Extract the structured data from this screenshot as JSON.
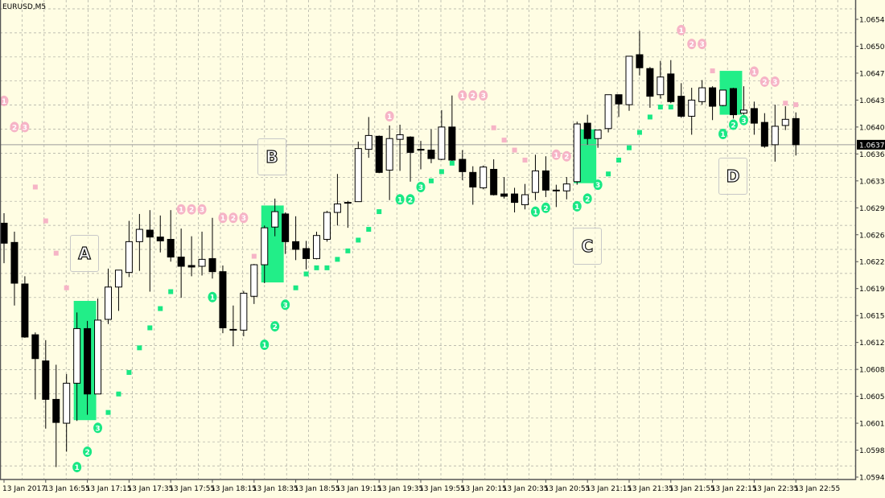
{
  "symbol_label": "EURUSD,M5",
  "colors": {
    "background": "#FFFDE3",
    "grid": "#a9a9a0",
    "bull_body": "#FFFFFF",
    "bear_body": "#000000",
    "zone": "#22EE88",
    "sar_up": "#19E884",
    "sar_down": "#F6B4C6",
    "price_tag_bg": "#000000"
  },
  "annotations": [
    {
      "label": "A"
    },
    {
      "label": "B"
    },
    {
      "label": "C"
    },
    {
      "label": "D"
    }
  ],
  "current_price": "1.06377",
  "chart_data": {
    "type": "candlestick",
    "title": "EURUSD,M5",
    "grid": true,
    "ylim": [
      1.05945,
      1.0654
    ],
    "y_ticks": [
      "1.06540",
      "1.06505",
      "1.06470",
      "1.06435",
      "1.06400",
      "1.06365",
      "1.06330",
      "1.06295",
      "1.06260",
      "1.06225",
      "1.06190",
      "1.06155",
      "1.06120",
      "1.06085",
      "1.06050",
      "1.06015",
      "1.05980",
      "1.05945"
    ],
    "x_ticks": [
      "13 Jan 2017",
      "13 Jan 16:55",
      "13 Jan 17:15",
      "13 Jan 17:35",
      "13 Jan 17:55",
      "13 Jan 18:15",
      "13 Jan 18:35",
      "13 Jan 18:55",
      "13 Jan 19:15",
      "13 Jan 19:35",
      "13 Jan 19:55",
      "13 Jan 20:15",
      "13 Jan 20:35",
      "13 Jan 20:55",
      "13 Jan 21:15",
      "13 Jan 21:35",
      "13 Jan 21:55",
      "13 Jan 22:15",
      "13 Jan 22:35",
      "13 Jan 22:55"
    ],
    "candles_fields": [
      "time",
      "open",
      "high",
      "low",
      "close"
    ],
    "candles": [
      [
        "16:35",
        1.06275,
        1.06288,
        1.06223,
        1.06249
      ],
      [
        "16:40",
        1.0625,
        1.06264,
        1.06168,
        1.06197
      ],
      [
        "16:45",
        1.06196,
        1.06206,
        1.06126,
        1.06127
      ],
      [
        "16:50",
        1.0613,
        1.06133,
        1.06046,
        1.06099
      ],
      [
        "16:55",
        1.06096,
        1.06123,
        1.06008,
        1.06046
      ],
      [
        "17:00",
        1.06046,
        1.06091,
        1.05958,
        1.06016
      ],
      [
        "17:05",
        1.06015,
        1.06079,
        1.05978,
        1.06067
      ],
      [
        "17:10",
        1.06067,
        1.06159,
        1.06018,
        1.06138
      ],
      [
        "17:15",
        1.06138,
        1.06148,
        1.06026,
        1.06053
      ],
      [
        "17:20",
        1.06053,
        1.06177,
        1.06053,
        1.06149
      ],
      [
        "17:25",
        1.0615,
        1.06216,
        1.06144,
        1.06192
      ],
      [
        "17:30",
        1.06192,
        1.06214,
        1.06161,
        1.06214
      ],
      [
        "17:35",
        1.06211,
        1.06278,
        1.06205,
        1.06251
      ],
      [
        "17:40",
        1.06251,
        1.06287,
        1.06213,
        1.06267
      ],
      [
        "17:45",
        1.06266,
        1.06292,
        1.06186,
        1.06257
      ],
      [
        "17:50",
        1.06257,
        1.06285,
        1.06237,
        1.06252
      ],
      [
        "17:55",
        1.06254,
        1.06292,
        1.06225,
        1.06231
      ],
      [
        "18:00",
        1.06231,
        1.06268,
        1.06178,
        1.06219
      ],
      [
        "18:05",
        1.0622,
        1.06258,
        1.06206,
        1.06218
      ],
      [
        "18:10",
        1.06219,
        1.06264,
        1.06207,
        1.06228
      ],
      [
        "18:15",
        1.06229,
        1.06282,
        1.06203,
        1.06212
      ],
      [
        "18:20",
        1.06212,
        1.0622,
        1.06132,
        1.06139
      ],
      [
        "18:25",
        1.06137,
        1.06168,
        1.06115,
        1.06137
      ],
      [
        "18:30",
        1.06136,
        1.06187,
        1.06128,
        1.06184
      ],
      [
        "18:35",
        1.0618,
        1.06222,
        1.0617,
        1.06221
      ],
      [
        "18:40",
        1.06221,
        1.06272,
        1.06197,
        1.06269
      ],
      [
        "18:45",
        1.0627,
        1.06307,
        1.06258,
        1.0629
      ],
      [
        "18:50",
        1.06287,
        1.06289,
        1.06235,
        1.06251
      ],
      [
        "18:55",
        1.06251,
        1.06284,
        1.06227,
        1.06241
      ],
      [
        "19:00",
        1.06242,
        1.06252,
        1.06215,
        1.06229
      ],
      [
        "19:05",
        1.06229,
        1.06264,
        1.06228,
        1.06259
      ],
      [
        "19:10",
        1.06254,
        1.06291,
        1.06251,
        1.06289
      ],
      [
        "19:15",
        1.06289,
        1.06339,
        1.06272,
        1.063
      ],
      [
        "19:20",
        1.06302,
        1.06304,
        1.06269,
        1.06301
      ],
      [
        "19:25",
        1.06303,
        1.06381,
        1.06303,
        1.06372
      ],
      [
        "19:30",
        1.06371,
        1.06413,
        1.0636,
        1.06389
      ],
      [
        "19:35",
        1.06388,
        1.06389,
        1.0634,
        1.06341
      ],
      [
        "19:40",
        1.06344,
        1.06402,
        1.06305,
        1.06385
      ],
      [
        "19:45",
        1.06384,
        1.06403,
        1.06343,
        1.0639
      ],
      [
        "19:50",
        1.06387,
        1.06388,
        1.06329,
        1.06367
      ],
      [
        "19:55",
        1.06371,
        1.06382,
        1.06345,
        1.0637
      ],
      [
        "20:00",
        1.0637,
        1.06397,
        1.06353,
        1.06359
      ],
      [
        "20:05",
        1.06358,
        1.06422,
        1.06357,
        1.064
      ],
      [
        "20:10",
        1.064,
        1.06441,
        1.06356,
        1.06357
      ],
      [
        "20:15",
        1.06358,
        1.0637,
        1.06331,
        1.06342
      ],
      [
        "20:20",
        1.06341,
        1.06349,
        1.06299,
        1.06322
      ],
      [
        "20:25",
        1.06321,
        1.0635,
        1.06319,
        1.06348
      ],
      [
        "20:30",
        1.06345,
        1.06358,
        1.06311,
        1.06312
      ],
      [
        "20:35",
        1.06313,
        1.06335,
        1.06307,
        1.0631
      ],
      [
        "20:40",
        1.06313,
        1.06321,
        1.06289,
        1.06302
      ],
      [
        "20:45",
        1.06299,
        1.06326,
        1.06293,
        1.06312
      ],
      [
        "20:50",
        1.06315,
        1.06364,
        1.06305,
        1.06343
      ],
      [
        "20:55",
        1.06343,
        1.06362,
        1.06309,
        1.06318
      ],
      [
        "21:00",
        1.06318,
        1.06325,
        1.06296,
        1.06317
      ],
      [
        "21:05",
        1.06317,
        1.06335,
        1.06306,
        1.06326
      ],
      [
        "21:10",
        1.06329,
        1.06407,
        1.06325,
        1.06404
      ],
      [
        "21:15",
        1.06405,
        1.06416,
        1.06377,
        1.06385
      ],
      [
        "21:20",
        1.06385,
        1.06396,
        1.06373,
        1.06396
      ],
      [
        "21:25",
        1.06398,
        1.06442,
        1.06393,
        1.06442
      ],
      [
        "21:30",
        1.06442,
        1.06442,
        1.06413,
        1.0643
      ],
      [
        "21:35",
        1.06429,
        1.06492,
        1.06421,
        1.06492
      ],
      [
        "21:40",
        1.06494,
        1.06525,
        1.06467,
        1.06477
      ],
      [
        "21:45",
        1.06476,
        1.06478,
        1.06425,
        1.0644
      ],
      [
        "21:50",
        1.06442,
        1.06486,
        1.06437,
        1.06465
      ],
      [
        "21:55",
        1.06469,
        1.06487,
        1.06431,
        1.06433
      ],
      [
        "22:00",
        1.0644,
        1.06457,
        1.06412,
        1.06414
      ],
      [
        "22:05",
        1.06414,
        1.06451,
        1.0639,
        1.06435
      ],
      [
        "22:10",
        1.06433,
        1.06461,
        1.06429,
        1.06451
      ],
      [
        "22:15",
        1.06451,
        1.06453,
        1.06409,
        1.06427
      ],
      [
        "22:20",
        1.06428,
        1.06448,
        1.06427,
        1.06448
      ],
      [
        "22:25",
        1.0645,
        1.06451,
        1.06411,
        1.06416
      ],
      [
        "22:30",
        1.06418,
        1.06453,
        1.06416,
        1.06422
      ],
      [
        "22:35",
        1.06424,
        1.06433,
        1.0639,
        1.06405
      ],
      [
        "22:40",
        1.06406,
        1.06418,
        1.06373,
        1.06375
      ],
      [
        "22:45",
        1.06377,
        1.06429,
        1.06355,
        1.06401
      ],
      [
        "22:50",
        1.06402,
        1.06427,
        1.06396,
        1.0641
      ],
      [
        "22:55",
        1.06411,
        1.06419,
        1.06363,
        1.06377
      ]
    ],
    "sar_fields": [
      "time",
      "price",
      "side"
    ],
    "sar": [
      [
        "16:35",
        1.06434,
        "down"
      ],
      [
        "16:50",
        1.06322,
        "down"
      ],
      [
        "16:55",
        1.06278,
        "down"
      ],
      [
        "17:00",
        1.06236,
        "down"
      ],
      [
        "17:05",
        1.06191,
        "down"
      ],
      [
        "17:25",
        1.06029,
        "up"
      ],
      [
        "17:30",
        1.06053,
        "up"
      ],
      [
        "17:35",
        1.06081,
        "up"
      ],
      [
        "17:40",
        1.06113,
        "up"
      ],
      [
        "17:45",
        1.06139,
        "up"
      ],
      [
        "17:50",
        1.06164,
        "up"
      ],
      [
        "17:55",
        1.06186,
        "up"
      ],
      [
        "18:35",
        1.06232,
        "down"
      ],
      [
        "18:55",
        1.06191,
        "up"
      ],
      [
        "19:00",
        1.06209,
        "up"
      ],
      [
        "19:05",
        1.06217,
        "up"
      ],
      [
        "19:10",
        1.06217,
        "up"
      ],
      [
        "19:15",
        1.06228,
        "up"
      ],
      [
        "19:20",
        1.06239,
        "up"
      ],
      [
        "19:25",
        1.06253,
        "up"
      ],
      [
        "19:30",
        1.06267,
        "up"
      ],
      [
        "19:35",
        1.0629,
        "up"
      ],
      [
        "20:00",
        1.0633,
        "up"
      ],
      [
        "20:05",
        1.06342,
        "up"
      ],
      [
        "20:10",
        1.06353,
        "up"
      ],
      [
        "20:30",
        1.06399,
        "down"
      ],
      [
        "20:35",
        1.06383,
        "down"
      ],
      [
        "20:40",
        1.0637,
        "down"
      ],
      [
        "20:45",
        1.06357,
        "down"
      ],
      [
        "21:25",
        1.06339,
        "up"
      ],
      [
        "21:30",
        1.06357,
        "up"
      ],
      [
        "21:35",
        1.06373,
        "up"
      ],
      [
        "21:40",
        1.06393,
        "up"
      ],
      [
        "21:45",
        1.06413,
        "up"
      ],
      [
        "21:50",
        1.06426,
        "up"
      ],
      [
        "21:55",
        1.06426,
        "up"
      ],
      [
        "22:15",
        1.06473,
        "down"
      ],
      [
        "22:50",
        1.06431,
        "down"
      ],
      [
        "22:55",
        1.06429,
        "down"
      ]
    ],
    "markers_fields": [
      "time",
      "price",
      "label",
      "side"
    ],
    "markers": [
      [
        "17:10",
        1.05958,
        "1",
        "up"
      ],
      [
        "17:15",
        1.05978,
        "2",
        "up"
      ],
      [
        "17:20",
        1.06009,
        "3",
        "up"
      ],
      [
        "18:15",
        1.06179,
        "1",
        "up"
      ],
      [
        "18:40",
        1.06117,
        "1",
        "up"
      ],
      [
        "18:45",
        1.06141,
        "2",
        "up"
      ],
      [
        "18:50",
        1.06169,
        "3",
        "up"
      ],
      [
        "19:45",
        1.06306,
        "1",
        "up"
      ],
      [
        "19:50",
        1.06306,
        "2",
        "up"
      ],
      [
        "19:55",
        1.06322,
        "3",
        "up"
      ],
      [
        "20:50",
        1.0629,
        "1",
        "up"
      ],
      [
        "20:55",
        1.06295,
        "2",
        "up"
      ],
      [
        "21:10",
        1.06297,
        "1",
        "up"
      ],
      [
        "21:15",
        1.06307,
        "2",
        "up"
      ],
      [
        "21:20",
        1.06325,
        "3",
        "up"
      ],
      [
        "22:20",
        1.06391,
        "1",
        "up"
      ],
      [
        "22:25",
        1.06403,
        "2",
        "up"
      ],
      [
        "22:30",
        1.06409,
        "3",
        "up"
      ],
      [
        "16:35",
        1.06434,
        "1",
        "down"
      ],
      [
        "16:40",
        1.064,
        "2",
        "down"
      ],
      [
        "16:45",
        1.064,
        "3",
        "down"
      ],
      [
        "18:00",
        1.06293,
        "1",
        "down"
      ],
      [
        "18:05",
        1.06293,
        "2",
        "down"
      ],
      [
        "18:10",
        1.06293,
        "3",
        "down"
      ],
      [
        "18:20",
        1.06282,
        "1",
        "down"
      ],
      [
        "18:25",
        1.06282,
        "2",
        "down"
      ],
      [
        "18:30",
        1.06282,
        "3",
        "down"
      ],
      [
        "19:40",
        1.06414,
        "1",
        "down"
      ],
      [
        "20:15",
        1.06441,
        "1",
        "down"
      ],
      [
        "20:20",
        1.06441,
        "2",
        "down"
      ],
      [
        "20:25",
        1.06441,
        "3",
        "down"
      ],
      [
        "21:00",
        1.06364,
        "1",
        "down"
      ],
      [
        "21:05",
        1.06362,
        "2",
        "down"
      ],
      [
        "22:00",
        1.06526,
        "1",
        "down"
      ],
      [
        "22:05",
        1.06508,
        "2",
        "down"
      ],
      [
        "22:10",
        1.06508,
        "3",
        "down"
      ],
      [
        "22:35",
        1.06472,
        "1",
        "down"
      ],
      [
        "22:40",
        1.06459,
        "2",
        "down"
      ],
      [
        "22:45",
        1.06459,
        "3",
        "down"
      ]
    ],
    "zones_fields": [
      "from_time",
      "to_time",
      "top",
      "bottom"
    ],
    "zones": [
      [
        "17:10",
        "17:20",
        1.06174,
        1.06019
      ],
      [
        "18:40",
        "18:50",
        1.06298,
        1.06198
      ],
      [
        "21:10",
        "21:20",
        1.06397,
        1.06327
      ],
      [
        "22:20",
        "22:30",
        1.06473,
        1.06416
      ]
    ]
  }
}
